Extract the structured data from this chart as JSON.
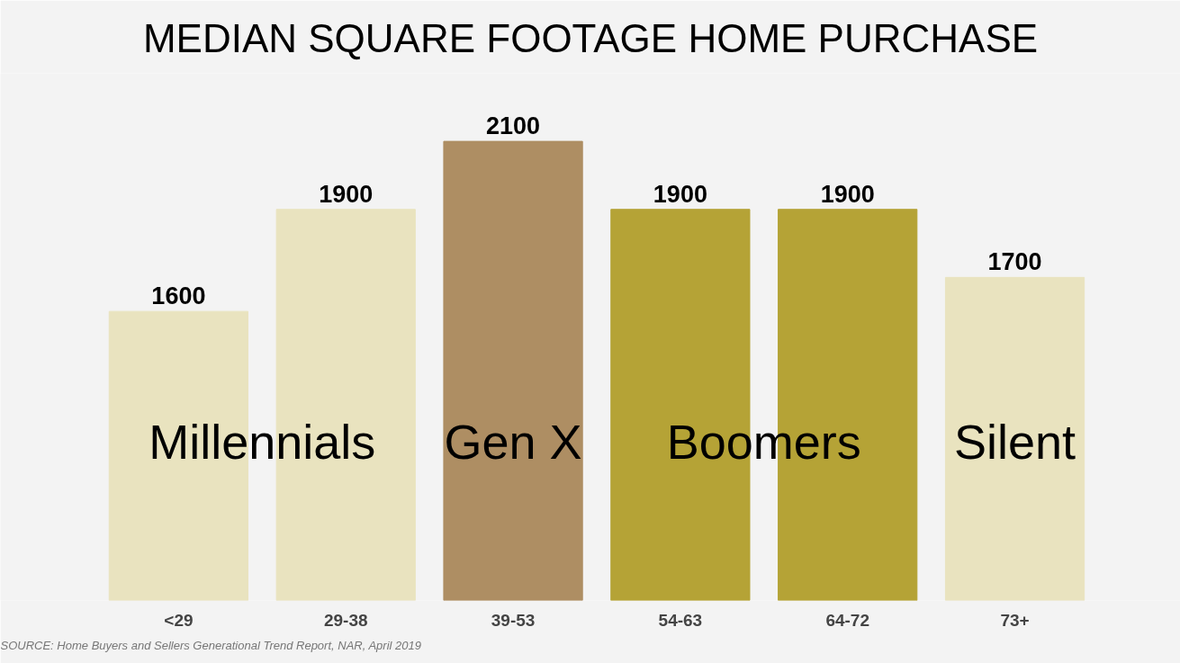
{
  "chart_data": {
    "type": "bar",
    "title": "MEDIAN SQUARE FOOTAGE HOME PURCHASE",
    "categories": [
      "<29",
      "29-38",
      "39-53",
      "54-63",
      "64-72",
      "73+"
    ],
    "values": [
      1600,
      1900,
      2100,
      1900,
      1900,
      1700
    ],
    "colors": [
      "#e9e3bf",
      "#e9e3bf",
      "#ae8e63",
      "#b5a336",
      "#b5a336",
      "#e9e3bf"
    ],
    "ylim": [
      750,
      2300
    ],
    "tick_labels": "x",
    "grid": false,
    "data_labels": true,
    "annotations": [
      "Millennials",
      "Gen X",
      "Boomers",
      "Silent",
      "SOURCE: Home Buyers and Sellers Generational Trend Report, NAR, April 2019"
    ]
  }
}
